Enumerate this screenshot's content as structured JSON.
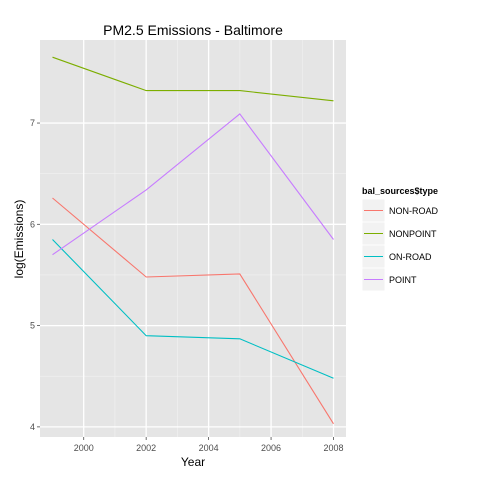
{
  "chart_data": {
    "type": "line",
    "title": "PM2.5 Emissions - Baltimore",
    "xlabel": "Year",
    "ylabel": "log(Emissions)",
    "x": [
      1999,
      2002,
      2005,
      2008
    ],
    "xlim": [
      1998.6,
      2008.4
    ],
    "ylim": [
      3.9,
      7.82
    ],
    "xticks": [
      2000,
      2002,
      2004,
      2006,
      2008
    ],
    "yticks": [
      4,
      5,
      6,
      7
    ],
    "grid": true,
    "legend_position": "right",
    "legend_title": "bal_sources$type",
    "series": [
      {
        "name": "NON-ROAD",
        "color": "#F8766D",
        "values": [
          6.26,
          5.48,
          5.51,
          4.03
        ]
      },
      {
        "name": "NONPOINT",
        "color": "#7CAE00",
        "values": [
          7.65,
          7.32,
          7.32,
          7.22
        ]
      },
      {
        "name": "ON-ROAD",
        "color": "#00BFC4",
        "values": [
          5.85,
          4.9,
          4.87,
          4.48
        ]
      },
      {
        "name": "POINT",
        "color": "#C77CFF",
        "values": [
          5.7,
          6.34,
          7.09,
          5.85
        ]
      }
    ]
  }
}
